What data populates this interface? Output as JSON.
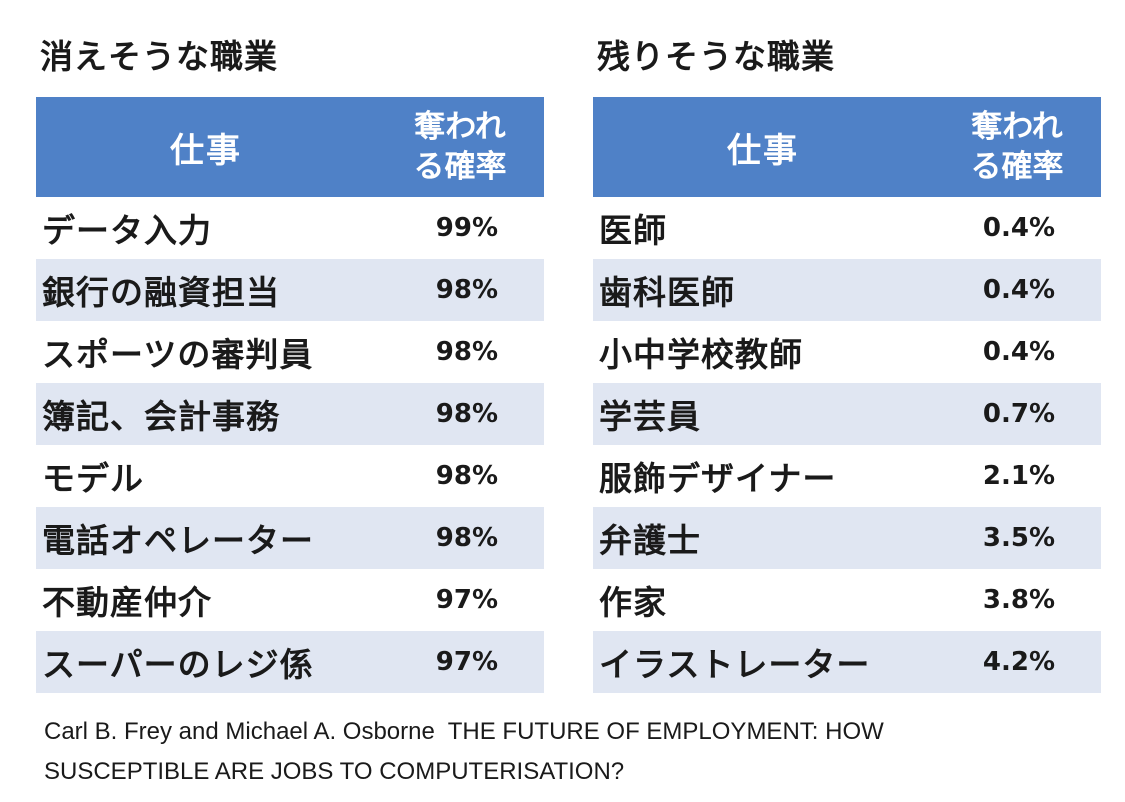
{
  "left_section": {
    "title": "消えそうな職業",
    "header": {
      "job": "仕事",
      "prob_line1": "奪われ",
      "prob_line2": "る確率"
    },
    "rows": [
      {
        "job": "データ入力",
        "prob": "99%"
      },
      {
        "job": "銀行の融資担当",
        "prob": "98%"
      },
      {
        "job": "スポーツの審判員",
        "prob": "98%"
      },
      {
        "job": "簿記、会計事務",
        "prob": "98%"
      },
      {
        "job": "モデル",
        "prob": "98%"
      },
      {
        "job": "電話オペレーター",
        "prob": "98%"
      },
      {
        "job": "不動産仲介",
        "prob": "97%"
      },
      {
        "job": "スーパーのレジ係",
        "prob": "97%"
      }
    ]
  },
  "right_section": {
    "title": "残りそうな職業",
    "header": {
      "job": "仕事",
      "prob_line1": "奪われ",
      "prob_line2": "る確率"
    },
    "rows": [
      {
        "job": "医師",
        "prob": "0.4%"
      },
      {
        "job": "歯科医師",
        "prob": "0.4%"
      },
      {
        "job": "小中学校教師",
        "prob": "0.4%"
      },
      {
        "job": "学芸員",
        "prob": "0.7%"
      },
      {
        "job": "服飾デザイナー",
        "prob": "2.1%"
      },
      {
        "job": "弁護士",
        "prob": "3.5%"
      },
      {
        "job": "作家",
        "prob": "3.8%"
      },
      {
        "job": "イラストレーター",
        "prob": "4.2%"
      }
    ]
  },
  "citation": {
    "authors": "Carl B. Frey and Michael A. Osborne",
    "title_line1": "THE FUTURE OF EMPLOYMENT: HOW",
    "title_line2": "SUSCEPTIBLE ARE JOBS TO COMPUTERISATION?"
  },
  "colors": {
    "header_bg": "#4f81c7",
    "stripe_bg": "#e0e6f2"
  }
}
